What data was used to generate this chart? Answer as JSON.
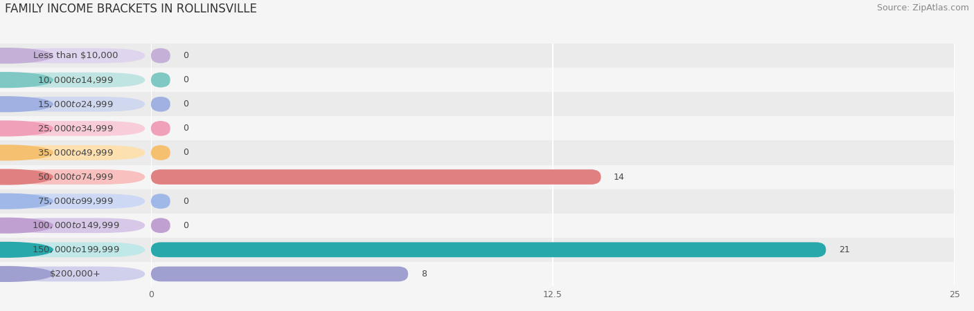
{
  "title": "FAMILY INCOME BRACKETS IN ROLLINSVILLE",
  "source": "Source: ZipAtlas.com",
  "categories": [
    "Less than $10,000",
    "$10,000 to $14,999",
    "$15,000 to $24,999",
    "$25,000 to $34,999",
    "$35,000 to $49,999",
    "$50,000 to $74,999",
    "$75,000 to $99,999",
    "$100,000 to $149,999",
    "$150,000 to $199,999",
    "$200,000+"
  ],
  "values": [
    0,
    0,
    0,
    0,
    0,
    14,
    0,
    0,
    21,
    8
  ],
  "bar_colors": [
    "#c5b0d8",
    "#80c8c4",
    "#a0b0e0",
    "#f0a0b8",
    "#f5c070",
    "#e08080",
    "#a0b8e8",
    "#c0a0d0",
    "#28a8aa",
    "#a0a0d0"
  ],
  "label_bg_colors": [
    "#e0d5ee",
    "#c0e4e2",
    "#d0d8f0",
    "#f8ccd8",
    "#fce0b0",
    "#f8c0be",
    "#ccd8f4",
    "#d8c8e8",
    "#c0e8e8",
    "#d0d0ec"
  ],
  "row_colors": [
    "#ebebeb",
    "#f5f5f5"
  ],
  "xlim": [
    0,
    25
  ],
  "xticks": [
    0,
    12.5,
    25
  ],
  "bar_height": 0.62,
  "background_color": "#f5f5f5",
  "title_fontsize": 12,
  "label_fontsize": 9.5,
  "value_fontsize": 9,
  "source_fontsize": 9
}
